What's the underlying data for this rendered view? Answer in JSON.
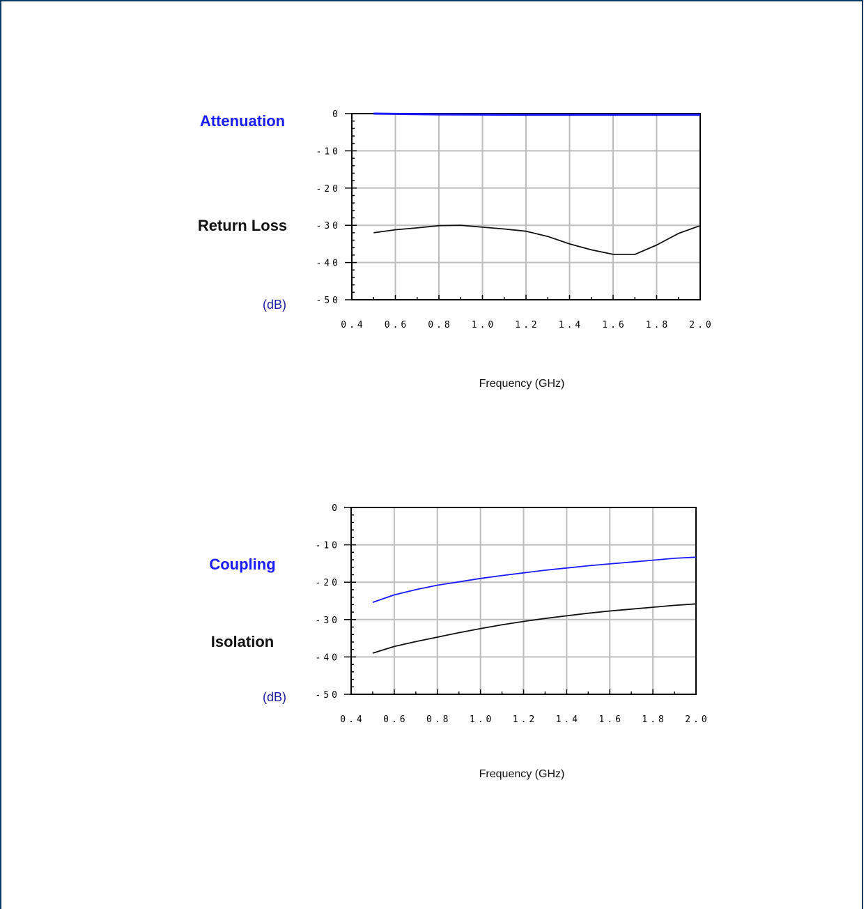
{
  "colors": {
    "frame": "#0b3a66",
    "blue_series": "#1a1aff",
    "black_series": "#111111",
    "unit_label": "#1a1aa0",
    "grid": "#bdbdbd"
  },
  "chart_data": [
    {
      "type": "line",
      "title": "",
      "xlabel": "Frequency (GHz)",
      "ylabel": "(dB)",
      "xlim": [
        0.4,
        2.0
      ],
      "ylim": [
        -50,
        0
      ],
      "xticks": [
        "0.4",
        "0.6",
        "0.8",
        "1.0",
        "1.2",
        "1.4",
        "1.6",
        "1.8",
        "2.0"
      ],
      "yticks": [
        "0",
        "-10",
        "-20",
        "-30",
        "-40",
        "-50"
      ],
      "grid": true,
      "series": [
        {
          "name": "Attenuation",
          "color": "#1a1aff",
          "x": [
            0.5,
            0.8,
            1.2,
            1.6,
            2.0
          ],
          "y": [
            0.0,
            -0.2,
            -0.3,
            -0.3,
            -0.3
          ]
        },
        {
          "name": "Return Loss",
          "color": "#111111",
          "x": [
            0.5,
            0.6,
            0.7,
            0.8,
            0.9,
            1.0,
            1.1,
            1.2,
            1.3,
            1.4,
            1.5,
            1.6,
            1.7,
            1.8,
            1.9,
            2.0
          ],
          "y": [
            -32,
            -31.2,
            -30.7,
            -30.1,
            -30,
            -30.5,
            -31,
            -31.6,
            -33,
            -35,
            -36.6,
            -37.8,
            -37.8,
            -35.3,
            -32.2,
            -30.1
          ]
        }
      ]
    },
    {
      "type": "line",
      "title": "",
      "xlabel": "Frequency (GHz)",
      "ylabel": "(dB)",
      "xlim": [
        0.4,
        2.0
      ],
      "ylim": [
        -50,
        0
      ],
      "xticks": [
        "0.4",
        "0.6",
        "0.8",
        "1.0",
        "1.2",
        "1.4",
        "1.6",
        "1.8",
        "2.0"
      ],
      "yticks": [
        "0",
        "-10",
        "-20",
        "-30",
        "-40",
        "-50"
      ],
      "grid": true,
      "series": [
        {
          "name": "Coupling",
          "color": "#1a1aff",
          "x": [
            0.5,
            0.6,
            0.7,
            0.8,
            0.9,
            1.0,
            1.1,
            1.2,
            1.3,
            1.4,
            1.5,
            1.6,
            1.7,
            1.8,
            1.9,
            2.0
          ],
          "y": [
            -25.4,
            -23.4,
            -22,
            -20.8,
            -19.9,
            -19,
            -18.2,
            -17.5,
            -16.8,
            -16.2,
            -15.6,
            -15.1,
            -14.6,
            -14.1,
            -13.6,
            -13.3
          ]
        },
        {
          "name": "Isolation",
          "color": "#111111",
          "x": [
            0.5,
            0.6,
            0.7,
            0.8,
            0.9,
            1.0,
            1.1,
            1.2,
            1.3,
            1.4,
            1.5,
            1.6,
            1.7,
            1.8,
            1.9,
            2.0
          ],
          "y": [
            -39,
            -37.2,
            -35.9,
            -34.7,
            -33.5,
            -32.4,
            -31.4,
            -30.5,
            -29.7,
            -29,
            -28.3,
            -27.7,
            -27.2,
            -26.7,
            -26.2,
            -25.8
          ]
        }
      ]
    }
  ]
}
